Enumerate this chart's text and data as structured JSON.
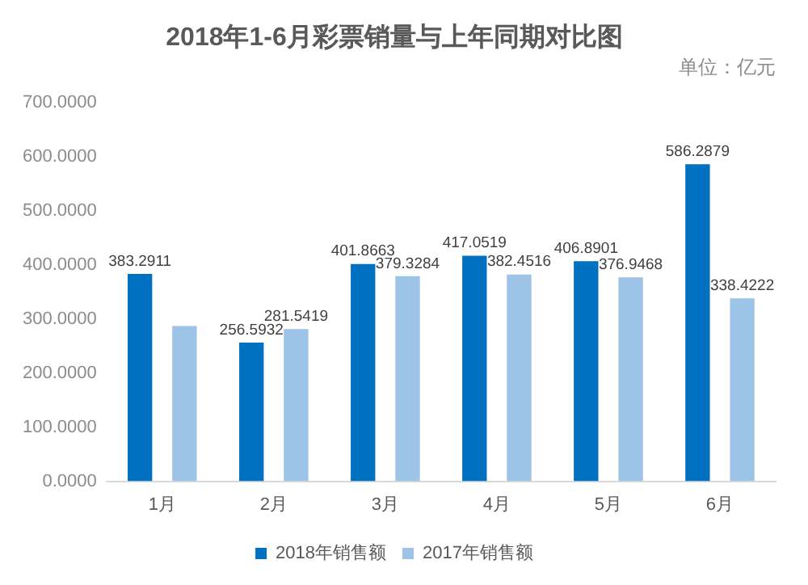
{
  "chart_data": {
    "type": "bar",
    "title": "2018年1-6月彩票销量与上年同期对比图",
    "subtitle": "单位：亿元",
    "categories": [
      "1月",
      "2月",
      "3月",
      "4月",
      "5月",
      "6月"
    ],
    "series": [
      {
        "name": "2018年销售额",
        "color": "#0070c0",
        "values": [
          383.2911,
          256.5932,
          401.8663,
          417.0519,
          406.8901,
          586.2879
        ],
        "value_labels": [
          "383.2911",
          "256.5932",
          "401.8663",
          "417.0519",
          "406.8901",
          "586.2879"
        ]
      },
      {
        "name": "2017年销售额",
        "color": "#9dc3e6",
        "values": [
          287,
          281.5419,
          379.3284,
          382.4516,
          376.9468,
          338.4222
        ],
        "value_labels": [
          null,
          "281.5419",
          "379.3284",
          "382.4516",
          "376.9468",
          "338.4222"
        ]
      }
    ],
    "ylim": [
      0,
      700
    ],
    "yticks": [
      {
        "value": 0,
        "label": "0.0000"
      },
      {
        "value": 100,
        "label": "100.0000"
      },
      {
        "value": 200,
        "label": "200.0000"
      },
      {
        "value": 300,
        "label": "300.0000"
      },
      {
        "value": 400,
        "label": "400.0000"
      },
      {
        "value": 500,
        "label": "500.0000"
      },
      {
        "value": 600,
        "label": "600.0000"
      },
      {
        "value": 700,
        "label": "700.0000"
      }
    ],
    "grid": false,
    "legend": "bottom"
  }
}
